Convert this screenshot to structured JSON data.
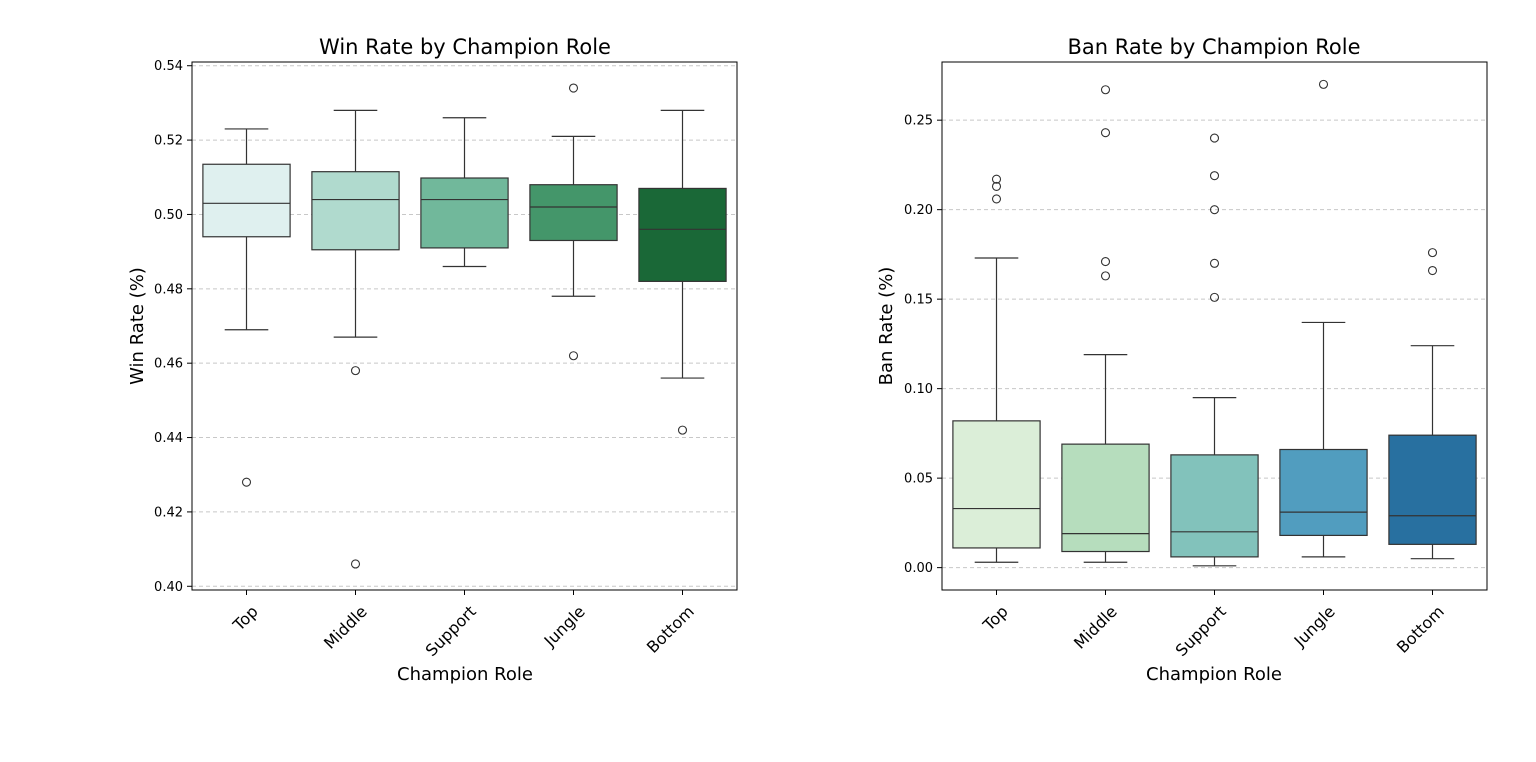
{
  "chart_data": [
    {
      "type": "box",
      "title": "Win Rate by Champion Role",
      "xlabel": "Champion Role",
      "ylabel": "Win Rate (%)",
      "ylim": [
        0.399,
        0.541
      ],
      "yticks": [
        0.4,
        0.42,
        0.44,
        0.46,
        0.48,
        0.5,
        0.52,
        0.54
      ],
      "tick_decimals": 2,
      "grid": "y-dashed",
      "categories": [
        "Top",
        "Middle",
        "Support",
        "Jungle",
        "Bottom"
      ],
      "colors": [
        "#dff0ef",
        "#b0dace",
        "#71b89b",
        "#44966a",
        "#1a6837"
      ],
      "boxes": [
        {
          "whislo": 0.469,
          "q1": 0.494,
          "med": 0.503,
          "q3": 0.5135,
          "whishi": 0.523,
          "fliers": [
            0.428
          ]
        },
        {
          "whislo": 0.467,
          "q1": 0.4905,
          "med": 0.504,
          "q3": 0.5115,
          "whishi": 0.528,
          "fliers": [
            0.458,
            0.406
          ]
        },
        {
          "whislo": 0.486,
          "q1": 0.491,
          "med": 0.504,
          "q3": 0.5098,
          "whishi": 0.526,
          "fliers": []
        },
        {
          "whislo": 0.478,
          "q1": 0.493,
          "med": 0.502,
          "q3": 0.508,
          "whishi": 0.521,
          "fliers": [
            0.534,
            0.462
          ]
        },
        {
          "whislo": 0.456,
          "q1": 0.482,
          "med": 0.496,
          "q3": 0.507,
          "whishi": 0.528,
          "fliers": [
            0.442
          ]
        }
      ]
    },
    {
      "type": "box",
      "title": "Ban Rate by Champion Role",
      "xlabel": "Champion Role",
      "ylabel": "Ban Rate (%)",
      "ylim": [
        -0.0125,
        0.2825
      ],
      "yticks": [
        0.0,
        0.05,
        0.1,
        0.15,
        0.2,
        0.25
      ],
      "tick_decimals": 2,
      "grid": "y-dashed",
      "categories": [
        "Top",
        "Middle",
        "Support",
        "Jungle",
        "Bottom"
      ],
      "colors": [
        "#dbeed8",
        "#b6ddbd",
        "#82c2bb",
        "#519dbf",
        "#2870a0"
      ],
      "boxes": [
        {
          "whislo": 0.003,
          "q1": 0.011,
          "med": 0.033,
          "q3": 0.082,
          "whishi": 0.173,
          "fliers": [
            0.217,
            0.213,
            0.206
          ]
        },
        {
          "whislo": 0.003,
          "q1": 0.009,
          "med": 0.019,
          "q3": 0.069,
          "whishi": 0.119,
          "fliers": [
            0.267,
            0.243,
            0.171,
            0.163
          ]
        },
        {
          "whislo": 0.001,
          "q1": 0.006,
          "med": 0.02,
          "q3": 0.063,
          "whishi": 0.095,
          "fliers": [
            0.24,
            0.219,
            0.2,
            0.17,
            0.151
          ]
        },
        {
          "whislo": 0.006,
          "q1": 0.018,
          "med": 0.031,
          "q3": 0.066,
          "whishi": 0.137,
          "fliers": [
            0.27
          ]
        },
        {
          "whislo": 0.005,
          "q1": 0.013,
          "med": 0.029,
          "q3": 0.074,
          "whishi": 0.124,
          "fliers": [
            0.176,
            0.166
          ]
        }
      ]
    }
  ]
}
